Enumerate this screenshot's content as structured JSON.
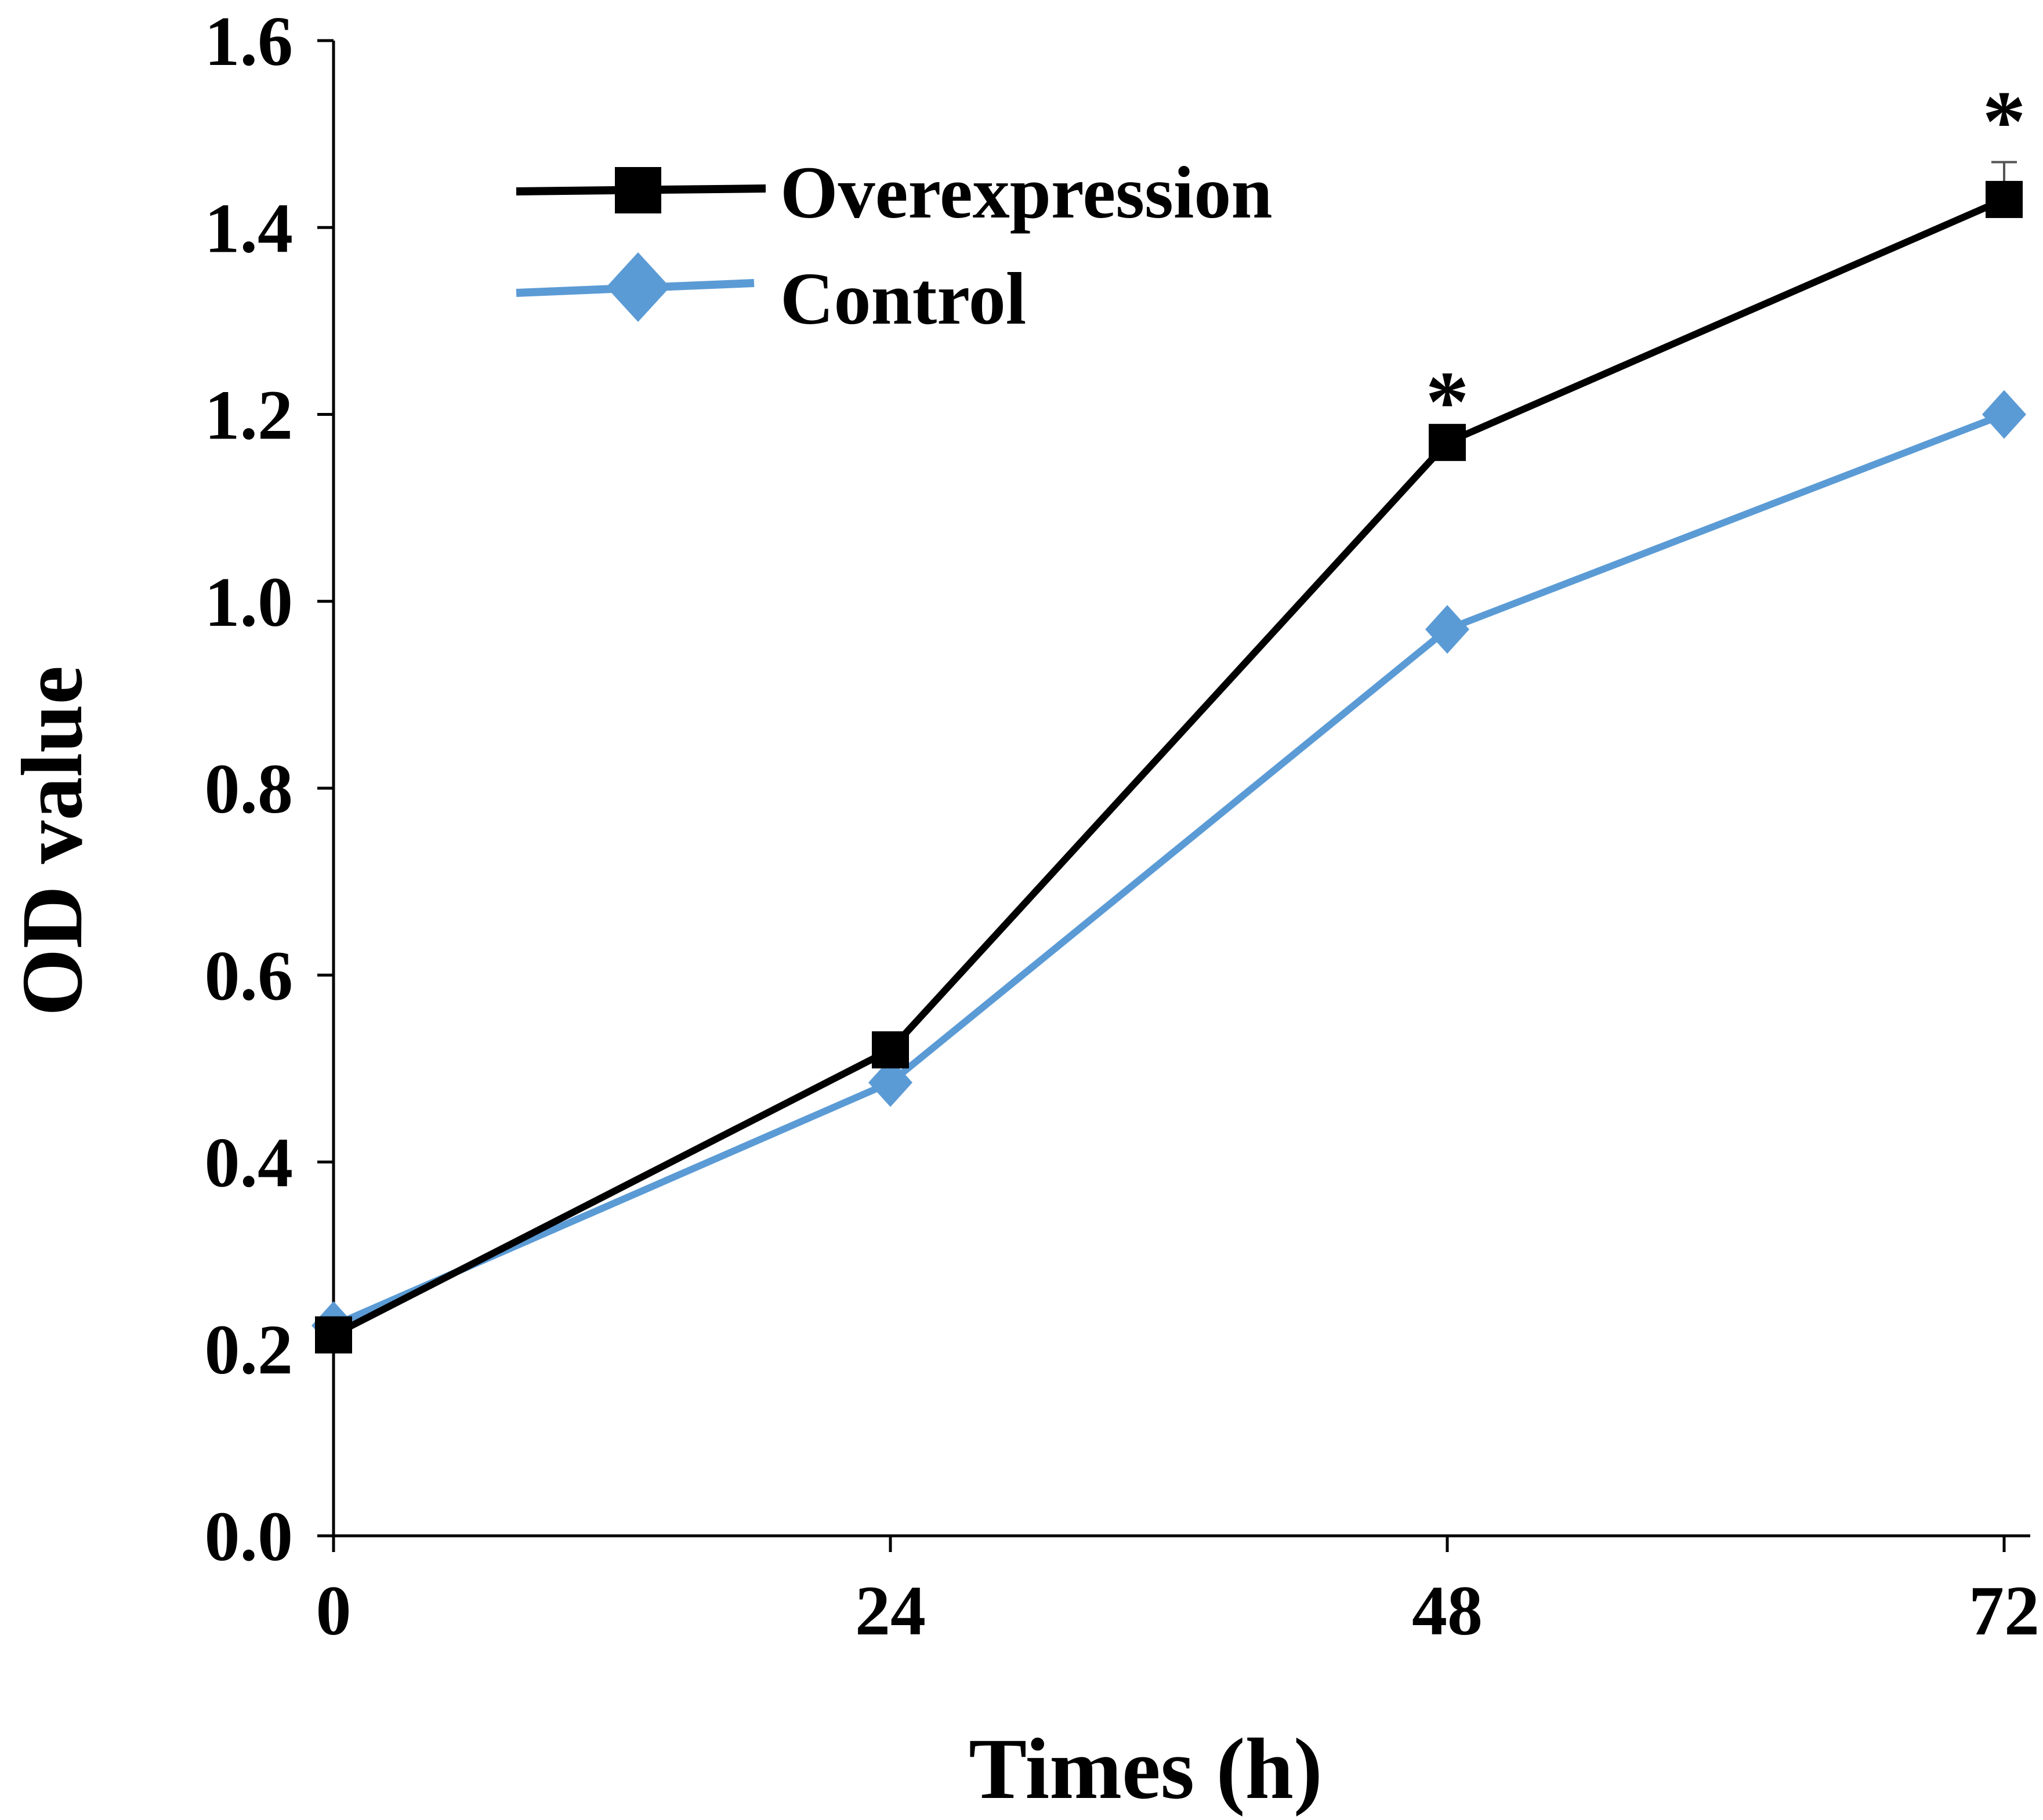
{
  "chart_data": {
    "type": "line",
    "title": "",
    "xlabel": "Times (h)",
    "ylabel": "OD value",
    "x": [
      0,
      24,
      48,
      72
    ],
    "x_tick_labels": [
      "0",
      "24",
      "48",
      "72"
    ],
    "ylim": [
      0,
      1.6
    ],
    "y_ticks": [
      0.0,
      0.2,
      0.4,
      0.6,
      0.8,
      1.0,
      1.2,
      1.4,
      1.6
    ],
    "y_tick_labels": [
      "0.0",
      "0.2",
      "0.4",
      "0.6",
      "0.8",
      "1.0",
      "1.2",
      "1.4",
      "1.6"
    ],
    "grid": false,
    "legend_position": "top-left",
    "series": [
      {
        "name": "Overexpression",
        "color": "#000000",
        "marker": "square",
        "values": [
          0.215,
          0.52,
          1.17,
          1.43
        ],
        "error": [
          0,
          0,
          0,
          0.04
        ]
      },
      {
        "name": "Control",
        "color": "#5B9BD5",
        "marker": "diamond",
        "values": [
          0.225,
          0.485,
          0.97,
          1.2
        ]
      }
    ],
    "annotations": [
      {
        "text": "*",
        "x": 48,
        "series": "Overexpression"
      },
      {
        "text": "*",
        "x": 72,
        "series": "Overexpression"
      }
    ]
  }
}
